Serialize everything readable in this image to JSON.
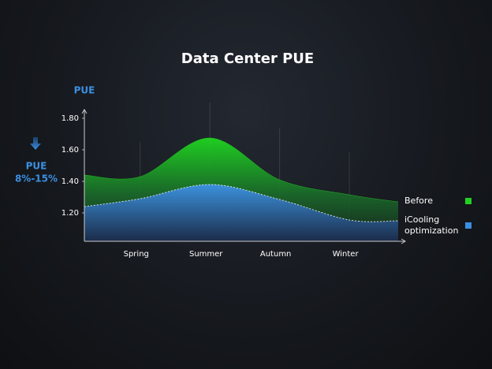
{
  "chart_data": {
    "type": "area",
    "title": "Data Center PUE",
    "y_label": "PUE",
    "annotation": {
      "label": "PUE",
      "text": "8%-15%"
    },
    "x": [
      -0.8,
      0,
      1,
      2,
      3,
      3.7
    ],
    "xlim": [
      -0.8,
      3.7
    ],
    "xticks": [
      {
        "value": 0,
        "label": "Spring"
      },
      {
        "value": 1,
        "label": "Summer"
      },
      {
        "value": 2,
        "label": "Autumn"
      },
      {
        "value": 3,
        "label": "Winter"
      }
    ],
    "ylim": [
      1.02,
      1.9
    ],
    "yticks": [
      {
        "value": 1.2,
        "label": "1.20"
      },
      {
        "value": 1.4,
        "label": "1.40"
      },
      {
        "value": 1.6,
        "label": "1.60"
      },
      {
        "value": 1.8,
        "label": "1.80"
      }
    ],
    "grid": true,
    "legend": "right",
    "series": [
      {
        "name": "Before",
        "color": "#22d022",
        "values": [
          1.44,
          1.43,
          1.675,
          1.41,
          1.315,
          1.27
        ]
      },
      {
        "name": "iCooling optimization",
        "color": "#3b8fe2",
        "values": [
          1.24,
          1.29,
          1.38,
          1.285,
          1.155,
          1.15
        ]
      }
    ]
  }
}
